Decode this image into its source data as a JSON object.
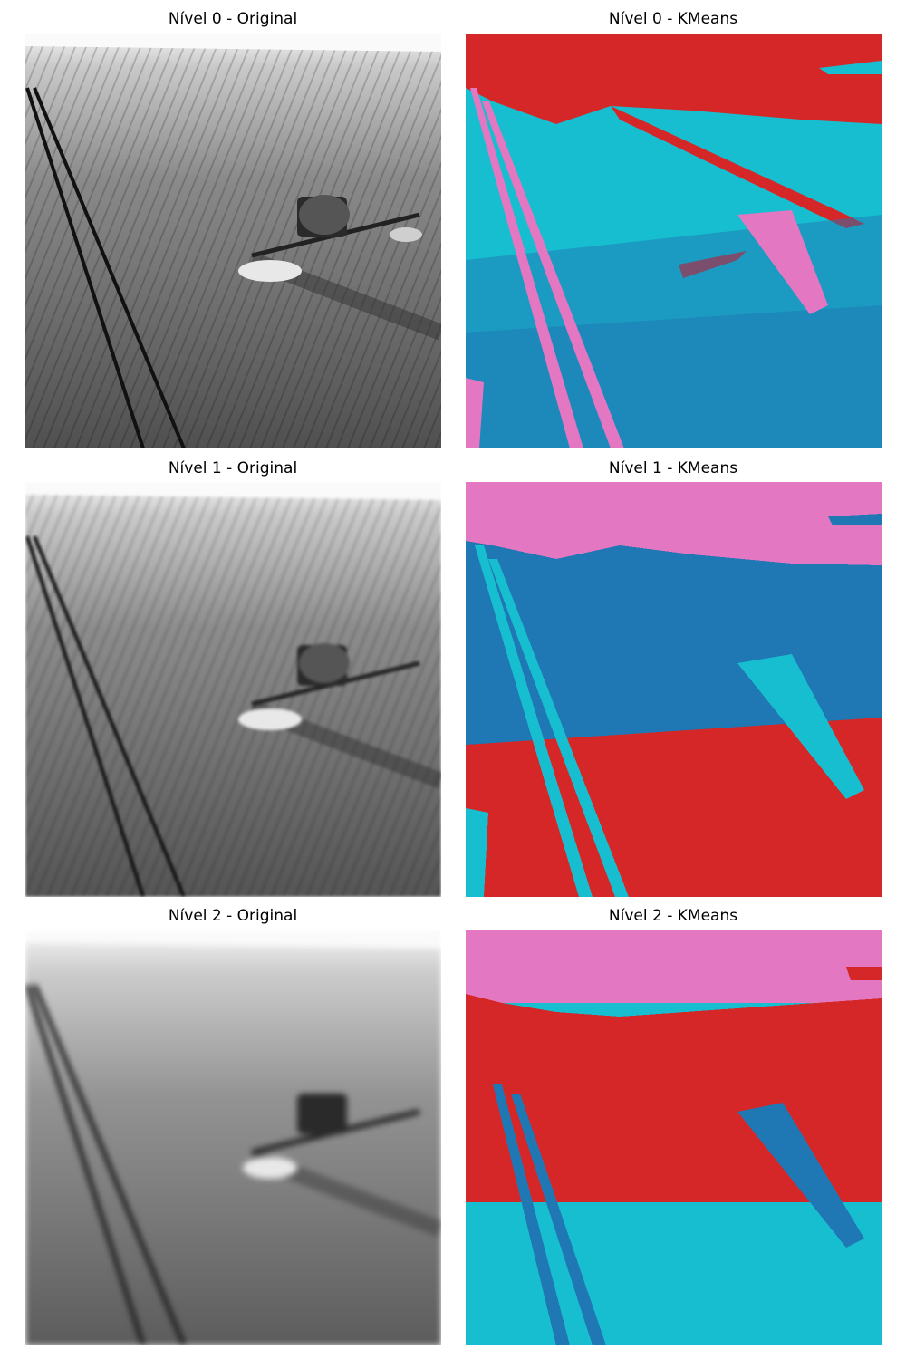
{
  "panels": [
    {
      "title": "Nível 0 - Original"
    },
    {
      "title": "Nível 0 - KMeans"
    },
    {
      "title": "Nível 1 - Original"
    },
    {
      "title": "Nível 1 - KMeans"
    },
    {
      "title": "Nível 2 - Original"
    },
    {
      "title": "Nível 2 - KMeans"
    }
  ],
  "cluster_colors": {
    "red": "#d62728",
    "cyan": "#17becf",
    "blue": "#1f77b4",
    "pink": "#e377c2"
  }
}
